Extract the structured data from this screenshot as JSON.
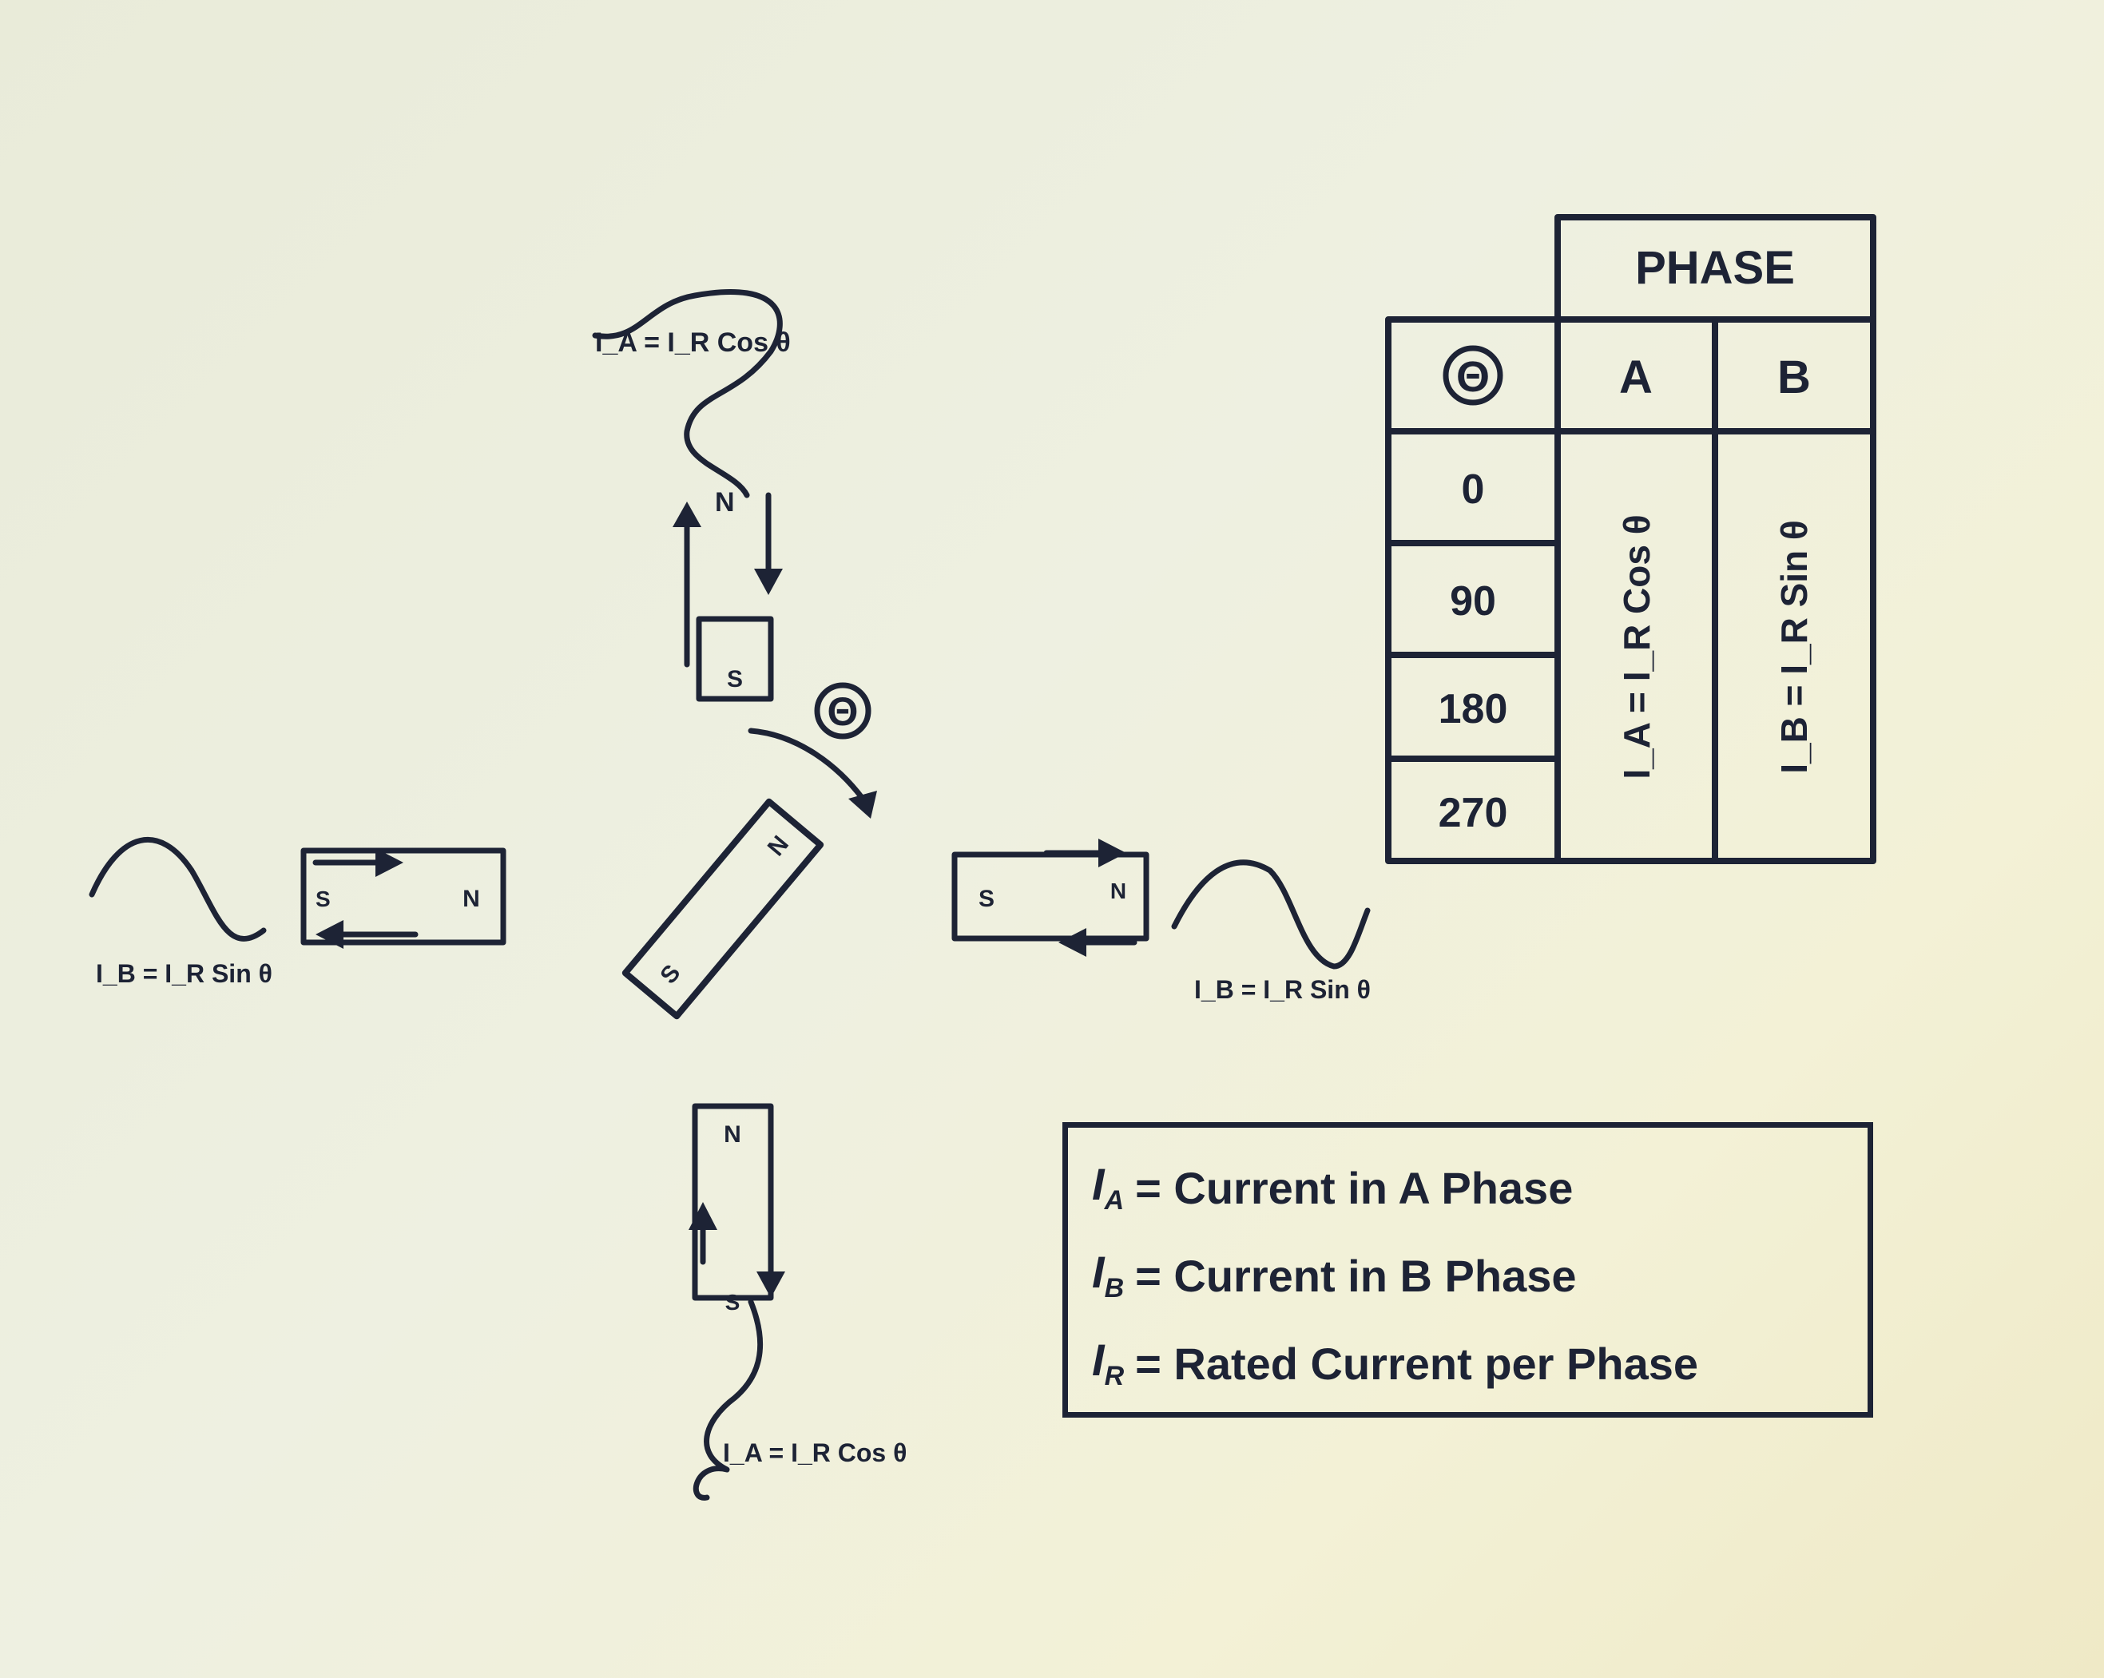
{
  "table": {
    "header_group": "PHASE",
    "angle_header": "Θ",
    "columns": [
      "A",
      "B"
    ],
    "rows": [
      "0",
      "90",
      "180",
      "270"
    ],
    "phase_a_formula": "I_A = I_R Cos θ",
    "phase_b_formula": "I_B = I_R Sin θ"
  },
  "diagram": {
    "angle_symbol": "Θ",
    "top_waveform_label": "I_A = I_R Cos θ",
    "left_waveform_label": "I_B = I_R Sin θ",
    "right_waveform_label": "I_B = I_R Sin θ",
    "bottom_waveform_label": "I_A = I_R Cos θ",
    "top_coil_pole": "S",
    "top_coil_terminal": "N",
    "left_coil_pole": "N",
    "left_coil_terminal": "S",
    "right_coil_pole": "S",
    "right_coil_terminal": "N",
    "bottom_coil_pole": "N",
    "bottom_coil_terminal": "S",
    "rotor_n": "N",
    "rotor_s": "S"
  },
  "legend": [
    {
      "symbol": "I",
      "sub": "A",
      "text": "= Current in A Phase"
    },
    {
      "symbol": "I",
      "sub": "B",
      "text": "= Current in B Phase"
    },
    {
      "symbol": "I",
      "sub": "R",
      "text": "= Rated Current per Phase"
    }
  ]
}
